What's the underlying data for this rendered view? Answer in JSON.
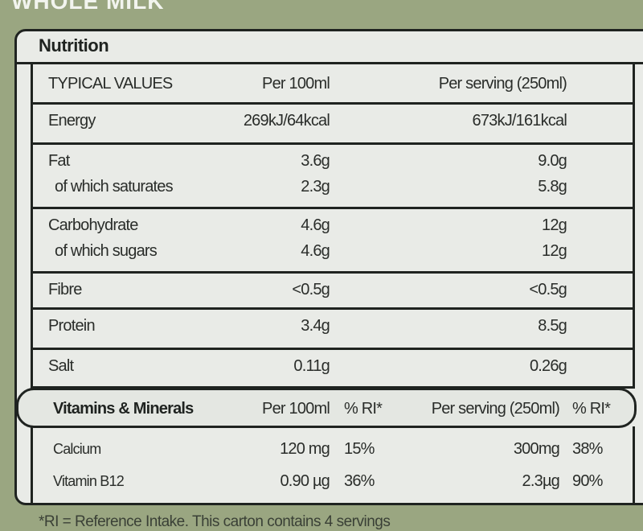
{
  "header": {
    "product": "WHOLE MILK",
    "title": "Nutrition"
  },
  "table": {
    "columns": [
      "TYPICAL VALUES",
      "Per 100ml",
      "Per serving (250ml)"
    ],
    "rows": [
      [
        [
          "Energy",
          "269kJ/64kcal",
          "673kJ/161kcal"
        ]
      ],
      [
        [
          "Fat",
          "3.6g",
          "9.0g"
        ],
        [
          "of which saturates",
          "2.3g",
          "5.8g"
        ]
      ],
      [
        [
          "Carbohydrate",
          "4.6g",
          "12g"
        ],
        [
          "of which sugars",
          "4.6g",
          "12g"
        ]
      ],
      [
        [
          "Fibre",
          "<0.5g",
          "<0.5g"
        ]
      ],
      [
        [
          "Protein",
          "3.4g",
          "8.5g"
        ]
      ],
      [
        [
          "Salt",
          "0.11g",
          "0.26g"
        ]
      ]
    ]
  },
  "vitamins": {
    "columns": [
      "Vitamins & Minerals",
      "Per 100ml",
      "% RI*",
      "Per serving (250ml)",
      "% RI*"
    ],
    "rows": [
      [
        "Calcium",
        "120 mg",
        "15%",
        "300mg",
        "38%"
      ],
      [
        "Vitamin B12",
        "0.90 µg",
        "36%",
        "2.3µg",
        "90%"
      ]
    ]
  },
  "footer": "*RI = Reference Intake. This carton contains 4 servings"
}
